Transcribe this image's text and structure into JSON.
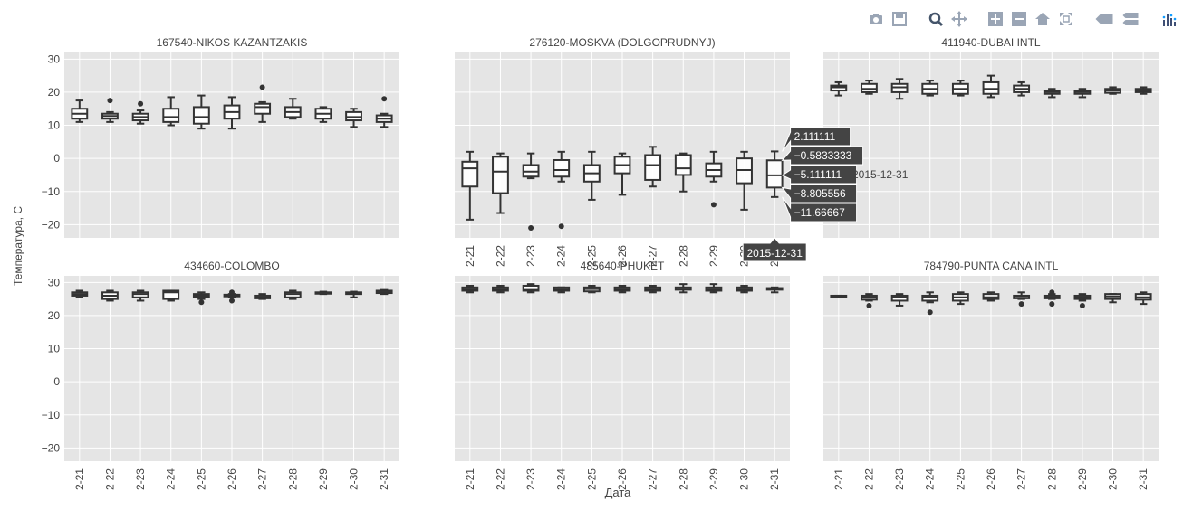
{
  "modebar": {
    "buttons": [
      {
        "name": "camera-icon",
        "active": false
      },
      {
        "name": "save-icon",
        "active": false
      },
      {
        "name": "zoom-icon",
        "active": true
      },
      {
        "name": "pan-icon",
        "active": false
      },
      {
        "name": "zoom-in-icon",
        "active": false
      },
      {
        "name": "zoom-out-icon",
        "active": false
      },
      {
        "name": "home-icon",
        "active": false
      },
      {
        "name": "autoscale-icon",
        "active": false
      },
      {
        "name": "hover-closest-icon",
        "active": false
      },
      {
        "name": "hover-compare-icon",
        "active": false
      },
      {
        "name": "plotly-logo-icon",
        "active": false
      }
    ]
  },
  "chart_data": {
    "type": "box",
    "ylabel": "Температура, С",
    "xlabel": "Дата",
    "x_ticks": [
      "2-21",
      "2-22",
      "2-23",
      "2-24",
      "2-25",
      "2-26",
      "2-27",
      "2-28",
      "2-29",
      "2-30",
      "2-31"
    ],
    "y_ticks": [
      30,
      20,
      10,
      0,
      -10,
      -20
    ],
    "ylim": [
      -24,
      32
    ],
    "grid": true,
    "box_color": "#333333",
    "panel_bg": "#e5e5e5",
    "panels": [
      {
        "title": "167540-NIKOS KAZANTZAKIS",
        "show_y_ticks": true,
        "show_x_ticks": false,
        "boxes": [
          {
            "min": 11,
            "q1": 12,
            "median": 13.5,
            "q3": 15,
            "max": 17.5,
            "outliers": []
          },
          {
            "min": 11,
            "q1": 12,
            "median": 12.8,
            "q3": 13.5,
            "max": 14,
            "outliers": [
              17.5
            ]
          },
          {
            "min": 10.5,
            "q1": 11.5,
            "median": 12.5,
            "q3": 13.5,
            "max": 14.5,
            "outliers": [
              16.5
            ]
          },
          {
            "min": 10,
            "q1": 11,
            "median": 12.5,
            "q3": 15,
            "max": 18.5,
            "outliers": []
          },
          {
            "min": 9,
            "q1": 10.5,
            "median": 12.5,
            "q3": 15.5,
            "max": 19,
            "outliers": []
          },
          {
            "min": 9,
            "q1": 12,
            "median": 14,
            "q3": 16,
            "max": 18.5,
            "outliers": []
          },
          {
            "min": 11,
            "q1": 13.5,
            "median": 15.5,
            "q3": 16.5,
            "max": 17,
            "outliers": [
              21.5
            ]
          },
          {
            "min": 12,
            "q1": 12.5,
            "median": 14,
            "q3": 15.5,
            "max": 18,
            "outliers": []
          },
          {
            "min": 11,
            "q1": 12,
            "median": 13.5,
            "q3": 15,
            "max": 15.5,
            "outliers": []
          },
          {
            "min": 9.5,
            "q1": 11.5,
            "median": 12.5,
            "q3": 14,
            "max": 15,
            "outliers": []
          },
          {
            "min": 9.5,
            "q1": 11,
            "median": 12,
            "q3": 13,
            "max": 13.5,
            "outliers": [
              18
            ]
          }
        ]
      },
      {
        "title": "276120-MOSKVA (DOLGOPRUDNYJ)",
        "show_y_ticks": false,
        "show_x_ticks": true,
        "boxes": [
          {
            "min": -18.5,
            "q1": -8.5,
            "median": -3,
            "q3": -1,
            "max": 2,
            "outliers": []
          },
          {
            "min": -16.5,
            "q1": -10.5,
            "median": -4,
            "q3": 0.5,
            "max": 1.5,
            "outliers": []
          },
          {
            "min": -6,
            "q1": -5.5,
            "median": -4,
            "q3": -2,
            "max": 1.5,
            "outliers": [
              -21
            ]
          },
          {
            "min": -7,
            "q1": -5.5,
            "median": -3.5,
            "q3": -0.5,
            "max": 2,
            "outliers": [
              -20.5
            ]
          },
          {
            "min": -12.5,
            "q1": -7,
            "median": -4.5,
            "q3": -2,
            "max": 2,
            "outliers": []
          },
          {
            "min": -11,
            "q1": -4.5,
            "median": -2,
            "q3": 0.5,
            "max": 1.5,
            "outliers": []
          },
          {
            "min": -8.5,
            "q1": -6.5,
            "median": -2,
            "q3": 1,
            "max": 3.5,
            "outliers": []
          },
          {
            "min": -10,
            "q1": -5,
            "median": -3,
            "q3": 1,
            "max": 1.5,
            "outliers": []
          },
          {
            "min": -7,
            "q1": -5.5,
            "median": -3.5,
            "q3": -1.5,
            "max": 2,
            "outliers": [
              -14
            ]
          },
          {
            "min": -15.5,
            "q1": -7.5,
            "median": -3.5,
            "q3": 0,
            "max": 2,
            "outliers": []
          },
          {
            "min": -11.66667,
            "q1": -8.805556,
            "median": -5.111111,
            "q3": -0.5833333,
            "max": 2.111111,
            "outliers": []
          }
        ]
      },
      {
        "title": "411940-DUBAI INTL",
        "show_y_ticks": false,
        "show_x_ticks": false,
        "boxes": [
          {
            "min": 19,
            "q1": 20.5,
            "median": 21.5,
            "q3": 22,
            "max": 23,
            "outliers": []
          },
          {
            "min": 19.5,
            "q1": 20,
            "median": 21,
            "q3": 22.5,
            "max": 23.5,
            "outliers": []
          },
          {
            "min": 18,
            "q1": 20,
            "median": 21.5,
            "q3": 22.5,
            "max": 24,
            "outliers": []
          },
          {
            "min": 19,
            "q1": 19.5,
            "median": 21,
            "q3": 22.5,
            "max": 23.5,
            "outliers": []
          },
          {
            "min": 19,
            "q1": 19.5,
            "median": 21,
            "q3": 22.5,
            "max": 23.5,
            "outliers": []
          },
          {
            "min": 18.5,
            "q1": 19.5,
            "median": 21,
            "q3": 23,
            "max": 25,
            "outliers": []
          },
          {
            "min": 19,
            "q1": 20,
            "median": 21,
            "q3": 22,
            "max": 23,
            "outliers": []
          },
          {
            "min": 18.5,
            "q1": 19.5,
            "median": 20,
            "q3": 20.5,
            "max": 21,
            "outliers": []
          },
          {
            "min": 18.5,
            "q1": 19.5,
            "median": 20,
            "q3": 20.5,
            "max": 21,
            "outliers": []
          },
          {
            "min": 19.5,
            "q1": 19.8,
            "median": 20.5,
            "q3": 21,
            "max": 21.5,
            "outliers": []
          },
          {
            "min": 19.5,
            "q1": 20,
            "median": 20.5,
            "q3": 21,
            "max": 21.5,
            "outliers": []
          }
        ]
      },
      {
        "title": "434660-COLOMBO",
        "show_y_ticks": true,
        "show_x_ticks": true,
        "boxes": [
          {
            "min": 25.5,
            "q1": 26,
            "median": 26.5,
            "q3": 27,
            "max": 27.5,
            "outliers": []
          },
          {
            "min": 24.5,
            "q1": 25,
            "median": 26,
            "q3": 27,
            "max": 27.5,
            "outliers": []
          },
          {
            "min": 24.5,
            "q1": 25.5,
            "median": 26.5,
            "q3": 27,
            "max": 27.5,
            "outliers": []
          },
          {
            "min": 24.5,
            "q1": 25,
            "median": 27,
            "q3": 27.5,
            "max": 27.5,
            "outliers": []
          },
          {
            "min": 25,
            "q1": 25.5,
            "median": 26,
            "q3": 26.5,
            "max": 27,
            "outliers": [
              24
            ]
          },
          {
            "min": 25.5,
            "q1": 25.8,
            "median": 26,
            "q3": 26.3,
            "max": 26.5,
            "outliers": [
              24.5,
              27
            ]
          },
          {
            "min": 25,
            "q1": 25.2,
            "median": 25.5,
            "q3": 26,
            "max": 26.5,
            "outliers": []
          },
          {
            "min": 25,
            "q1": 25.5,
            "median": 26.5,
            "q3": 27,
            "max": 27.5,
            "outliers": []
          },
          {
            "min": 26.5,
            "q1": 26.6,
            "median": 26.8,
            "q3": 27,
            "max": 27.2,
            "outliers": []
          },
          {
            "min": 25.5,
            "q1": 26.5,
            "median": 26.8,
            "q3": 27,
            "max": 27.2,
            "outliers": []
          },
          {
            "min": 26.5,
            "q1": 26.8,
            "median": 27,
            "q3": 27.5,
            "max": 28,
            "outliers": []
          }
        ]
      },
      {
        "title": "485640-PHUKET",
        "show_y_ticks": false,
        "show_x_ticks": true,
        "boxes": [
          {
            "min": 27,
            "q1": 27.5,
            "median": 28,
            "q3": 28.5,
            "max": 29,
            "outliers": []
          },
          {
            "min": 27,
            "q1": 27.5,
            "median": 28,
            "q3": 28.5,
            "max": 29,
            "outliers": []
          },
          {
            "min": 27,
            "q1": 27.5,
            "median": 28,
            "q3": 29,
            "max": 29.5,
            "outliers": []
          },
          {
            "min": 27,
            "q1": 27.5,
            "median": 28,
            "q3": 28.5,
            "max": 28.5,
            "outliers": []
          },
          {
            "min": 27,
            "q1": 27.3,
            "median": 28,
            "q3": 28.5,
            "max": 29,
            "outliers": []
          },
          {
            "min": 27,
            "q1": 27.5,
            "median": 28,
            "q3": 28.5,
            "max": 29,
            "outliers": []
          },
          {
            "min": 27,
            "q1": 27.5,
            "median": 28,
            "q3": 28.5,
            "max": 29,
            "outliers": []
          },
          {
            "min": 27,
            "q1": 27.8,
            "median": 28,
            "q3": 28.5,
            "max": 29.5,
            "outliers": []
          },
          {
            "min": 27,
            "q1": 27.5,
            "median": 28,
            "q3": 28.5,
            "max": 29.5,
            "outliers": []
          },
          {
            "min": 27,
            "q1": 27.5,
            "median": 28,
            "q3": 28.5,
            "max": 29,
            "outliers": []
          },
          {
            "min": 27,
            "q1": 27.8,
            "median": 28,
            "q3": 28.3,
            "max": 28.5,
            "outliers": []
          }
        ]
      },
      {
        "title": "784790-PUNTA CANA INTL",
        "show_y_ticks": false,
        "show_x_ticks": true,
        "boxes": [
          {
            "min": 25.5,
            "q1": 25.6,
            "median": 25.8,
            "q3": 26,
            "max": 26,
            "outliers": []
          },
          {
            "min": 24.5,
            "q1": 24.8,
            "median": 25.5,
            "q3": 26,
            "max": 26.5,
            "outliers": [
              23
            ]
          },
          {
            "min": 23,
            "q1": 24.5,
            "median": 25.5,
            "q3": 26,
            "max": 26.5,
            "outliers": []
          },
          {
            "min": 24,
            "q1": 24.5,
            "median": 25.5,
            "q3": 26,
            "max": 27,
            "outliers": [
              21
            ]
          },
          {
            "min": 23.5,
            "q1": 24.5,
            "median": 25.5,
            "q3": 26.5,
            "max": 27,
            "outliers": []
          },
          {
            "min": 24.5,
            "q1": 25,
            "median": 25.5,
            "q3": 26.5,
            "max": 27,
            "outliers": []
          },
          {
            "min": 25,
            "q1": 25.2,
            "median": 25.8,
            "q3": 26,
            "max": 27,
            "outliers": [
              23.5
            ]
          },
          {
            "min": 25,
            "q1": 25.2,
            "median": 25.5,
            "q3": 26,
            "max": 26.5,
            "outliers": [
              23.5,
              27
            ]
          },
          {
            "min": 24.5,
            "q1": 25,
            "median": 25.5,
            "q3": 26,
            "max": 26.5,
            "outliers": [
              23
            ]
          },
          {
            "min": 24,
            "q1": 25,
            "median": 25.8,
            "q3": 26.5,
            "max": 26.5,
            "outliers": []
          },
          {
            "min": 23.5,
            "q1": 24.8,
            "median": 25.5,
            "q3": 26.5,
            "max": 27,
            "outliers": []
          }
        ]
      }
    ],
    "hover": {
      "panel": 1,
      "box": 10,
      "values": [
        "2.111111",
        "-0.5833333",
        "-5.111111",
        "-8.805556",
        "-11.66667"
      ],
      "median_date": "2015-12-31",
      "x_label": "2015-12-31"
    }
  }
}
